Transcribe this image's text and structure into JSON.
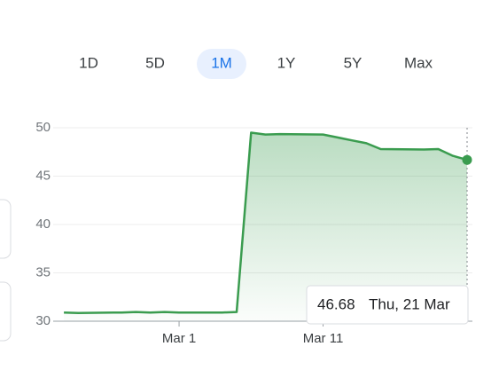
{
  "tabs": [
    "1D",
    "5D",
    "1M",
    "1Y",
    "5Y",
    "Max"
  ],
  "selected_tab": "1M",
  "chart_data": {
    "type": "area-line",
    "x": [
      -8,
      -7,
      -4,
      -3,
      -2,
      -1,
      0,
      3,
      4,
      5,
      6,
      7,
      10,
      11,
      12,
      13,
      14,
      17,
      18,
      19,
      20
    ],
    "values": [
      30.9,
      30.85,
      30.9,
      30.95,
      30.9,
      30.95,
      30.9,
      30.9,
      30.95,
      49.5,
      49.3,
      49.35,
      49.3,
      49.0,
      48.7,
      48.4,
      47.8,
      47.75,
      47.8,
      47.1,
      46.68
    ],
    "color": "#3a9c4f",
    "xlim": [
      -8.25,
      20
    ],
    "xticks": [
      {
        "value": 0,
        "label": "Mar 1"
      },
      {
        "value": 10,
        "label": "Mar 11"
      }
    ],
    "ylim": [
      30,
      50
    ],
    "yticks": [
      30,
      35,
      40,
      45,
      50
    ],
    "grid": true,
    "tooltip_label": "Thu, 21 Mar"
  }
}
